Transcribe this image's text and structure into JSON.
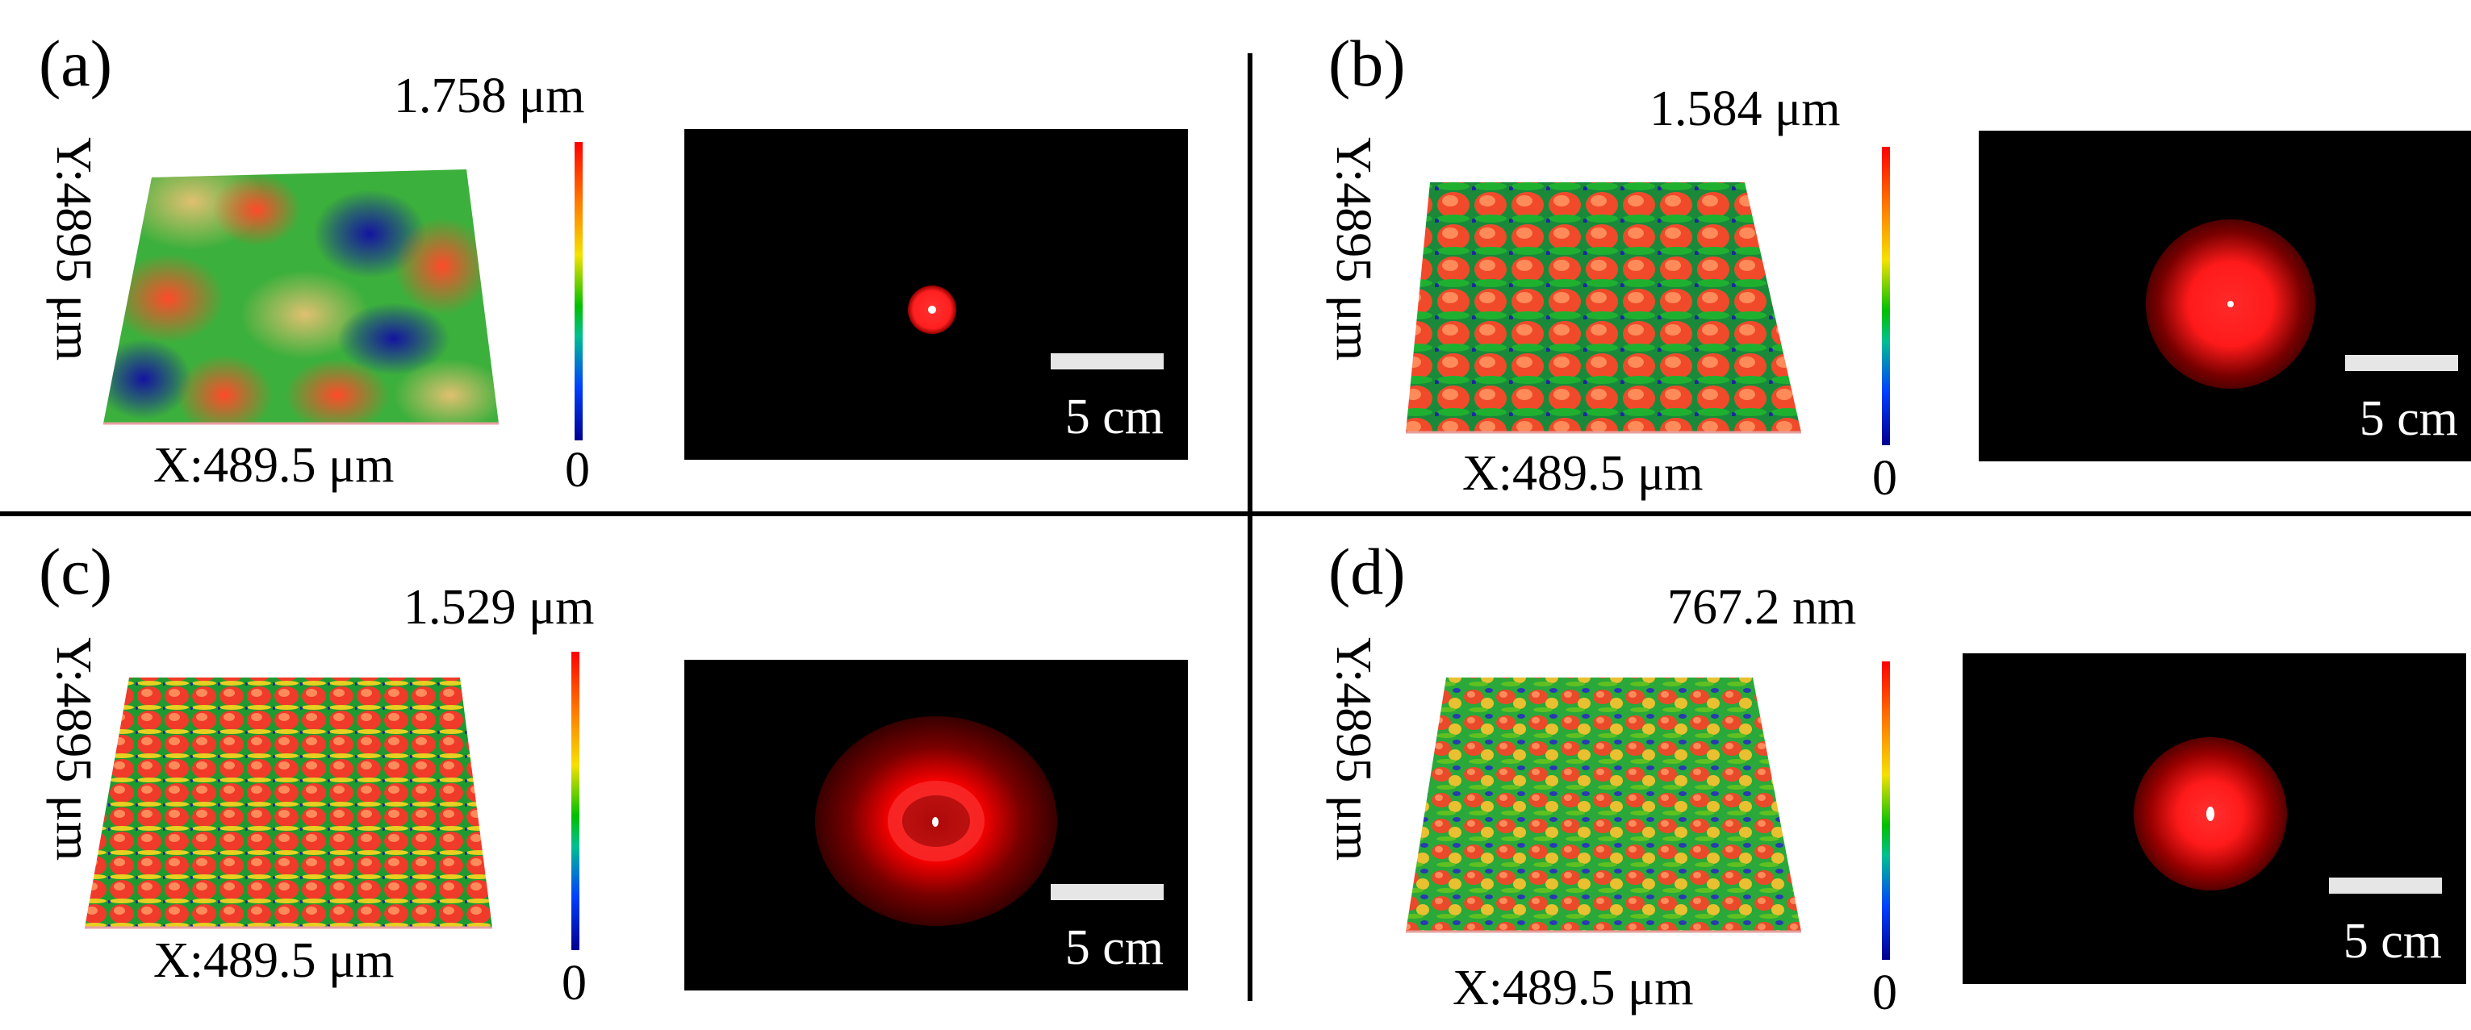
{
  "panels": [
    {
      "label": "(a)",
      "max_value": "1.758 μm",
      "min_value": "0",
      "x_axis": "X:489.5 μm",
      "y_axis": "Y:4895 μm",
      "scale_bar": "5 cm"
    },
    {
      "label": "(b)",
      "max_value": "1.584 μm",
      "min_value": "0",
      "x_axis": "X:489.5 μm",
      "y_axis": "Y:4895 μm",
      "scale_bar": "5 cm"
    },
    {
      "label": "(c)",
      "max_value": "1.529 μm",
      "min_value": "0",
      "x_axis": "X:489.5 μm",
      "y_axis": "Y:4895 μm",
      "scale_bar": "5 cm"
    },
    {
      "label": "(d)",
      "max_value": "767.2 nm",
      "min_value": "0",
      "x_axis": "X:489.5 μm",
      "y_axis": "Y:4895 μm",
      "scale_bar": "5 cm"
    }
  ],
  "colors": {
    "divider": "#000000",
    "fft_background": "#000000",
    "speckle": "#ff2020",
    "colormap": [
      "#000090",
      "#0040ff",
      "#00c000",
      "#f5e100",
      "#ff7a00",
      "#ff0000"
    ]
  }
}
